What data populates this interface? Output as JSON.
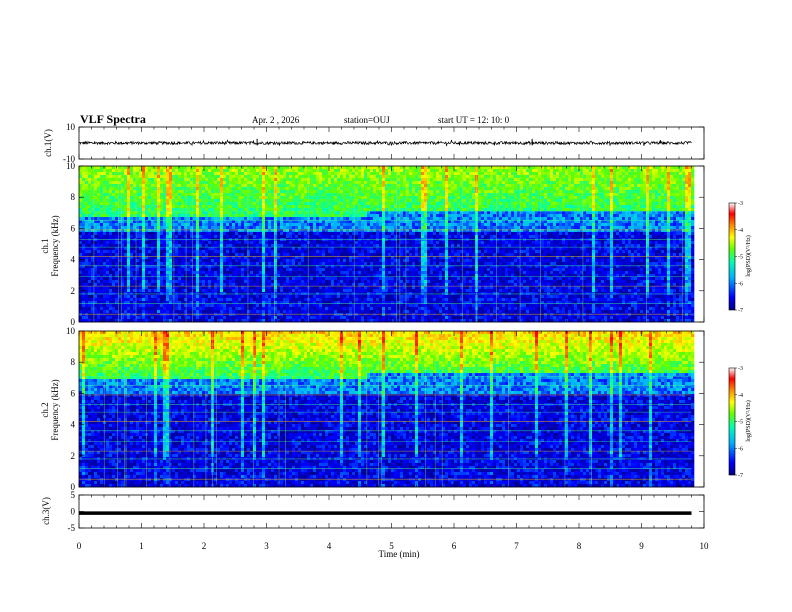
{
  "header": {
    "title": "VLF Spectra",
    "date": "Apr. 2 , 2026",
    "station": "station=OUJ",
    "start": "start UT =  12: 10: 0"
  },
  "chart_data": {
    "type": "heatmap",
    "xlabel": "Time (min)",
    "x_range": [
      0,
      10
    ],
    "x_ticks": [
      "0",
      "1",
      "2",
      "3",
      "4",
      "5",
      "6",
      "7",
      "8",
      "9",
      "10"
    ],
    "panels": [
      {
        "id": "ch1v",
        "type": "line",
        "ylabel": "ch.1(V)",
        "y_range": [
          -10,
          10
        ],
        "y_ticks": [
          "10",
          "-10"
        ],
        "data_end_min": 9.8
      },
      {
        "id": "ch1",
        "type": "heatmap",
        "ylabel_line1": "ch.1",
        "ylabel_line2": "Frequency (kHz)",
        "y_range": [
          0,
          10
        ],
        "y_ticks": [
          "10",
          "8",
          "6",
          "4",
          "2",
          "0"
        ],
        "data_end_min": 9.8,
        "colorbar": {
          "label": "log(PSD)(V²/Hz)",
          "range": [
            -7,
            -3
          ],
          "ticks": [
            "-3",
            "-4",
            "-5",
            "-6",
            "-7"
          ]
        }
      },
      {
        "id": "ch2",
        "type": "heatmap",
        "ylabel_line1": "ch.2",
        "ylabel_line2": "Frequency (kHz)",
        "y_range": [
          0,
          10
        ],
        "y_ticks": [
          "10",
          "8",
          "6",
          "4",
          "2",
          "0"
        ],
        "data_end_min": 9.8,
        "colorbar": {
          "label": "log(PSD)(V²/Hz)",
          "range": [
            -7,
            -3
          ],
          "ticks": [
            "-3",
            "-4",
            "-5",
            "-6",
            "-7"
          ]
        }
      },
      {
        "id": "ch3v",
        "type": "line",
        "ylabel": "ch.3(V)",
        "y_range": [
          -5,
          5
        ],
        "y_ticks": [
          "5",
          "0",
          "-5"
        ],
        "constant_value": -0.5,
        "data_end_min": 9.8
      }
    ],
    "colormap": [
      "#00007f",
      "#0000ff",
      "#00b0ff",
      "#00ffb0",
      "#60ff00",
      "#ffff00",
      "#ff8000",
      "#ff0000",
      "#ffffff"
    ]
  }
}
